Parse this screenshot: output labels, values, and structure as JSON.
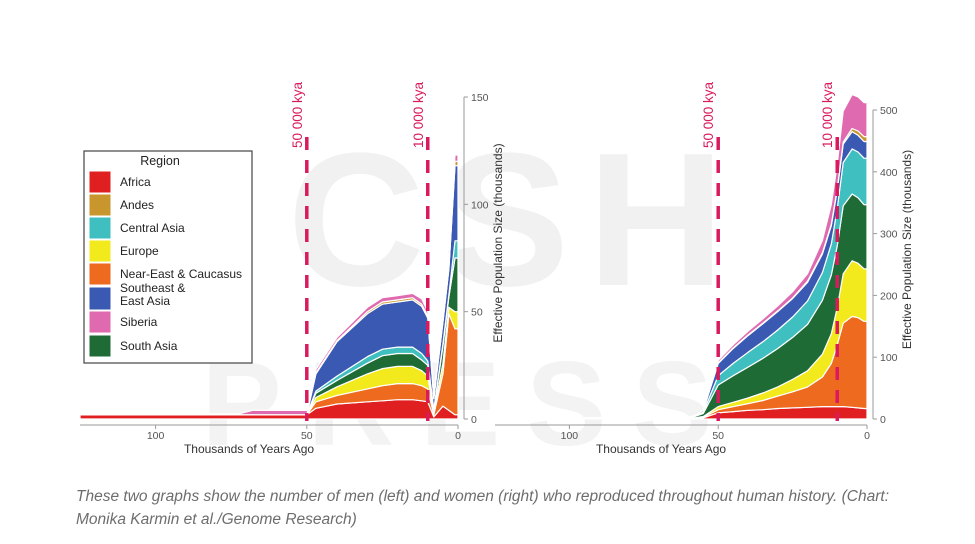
{
  "caption": "These two graphs show the number of men (left) and women (right) who reproduced throughout human history. (Chart: Monika Karmin et al./Genome Research)",
  "watermark": "CSH PRESS",
  "legend": {
    "title": "Region",
    "items": [
      {
        "label": "Africa",
        "color": "#e02020"
      },
      {
        "label": "Andes",
        "color": "#c9962e"
      },
      {
        "label": "Central Asia",
        "color": "#3fbfbf"
      },
      {
        "label": "Europe",
        "color": "#f2ea1c"
      },
      {
        "label": "Near-East & Caucasus",
        "color": "#ee6a1e"
      },
      {
        "label": "Southeast &\nEast Asia",
        "color": "#3a59b3"
      },
      {
        "label": "Siberia",
        "color": "#e06aaf"
      },
      {
        "label": "South Asia",
        "color": "#1f6b35"
      }
    ]
  },
  "chart_data": [
    {
      "type": "area",
      "subject": "men",
      "xlabel": "Thousands of Years Ago",
      "ylabel": "Effective Population Size (thousands)",
      "xlim": [
        125,
        0
      ],
      "ylim": [
        0,
        150
      ],
      "xticks": [
        100,
        50,
        0
      ],
      "yticks": [
        0,
        50,
        100,
        150
      ],
      "annotations": [
        {
          "x": 50,
          "label": "50 000 kya"
        },
        {
          "x": 10,
          "label": "10 000 kya"
        }
      ],
      "x": [
        125,
        72,
        68,
        60,
        52,
        50,
        47,
        40,
        30,
        25,
        20,
        15,
        12,
        10,
        8,
        5,
        3,
        1,
        0
      ],
      "series": [
        {
          "name": "Africa",
          "values": [
            2,
            2,
            2,
            2,
            2,
            2,
            5,
            7,
            8,
            8.5,
            9,
            9,
            8.5,
            8,
            1,
            6,
            4,
            2,
            2
          ]
        },
        {
          "name": "Near-East & Caucasus",
          "values": [
            0,
            0,
            0,
            0,
            0,
            0,
            3,
            4,
            6,
            7,
            7.5,
            7.5,
            7,
            6,
            1,
            15,
            45,
            40,
            40
          ]
        },
        {
          "name": "Europe",
          "values": [
            0,
            0,
            0,
            0,
            0,
            0,
            2,
            4,
            7,
            8,
            8,
            8,
            7,
            6,
            1,
            5,
            3,
            8,
            8
          ]
        },
        {
          "name": "South Asia",
          "values": [
            0,
            0,
            0,
            0,
            0,
            0,
            2,
            3,
            5,
            6,
            6,
            6,
            5,
            5,
            1,
            8,
            5,
            25,
            25
          ]
        },
        {
          "name": "Central Asia",
          "values": [
            0,
            0,
            0,
            0,
            0,
            0,
            1,
            2,
            3,
            3,
            3,
            3,
            3,
            2,
            0.5,
            1,
            1,
            8,
            8
          ]
        },
        {
          "name": "Southeast &\nEast Asia",
          "values": [
            0,
            0,
            0,
            0,
            0,
            0,
            8,
            16,
            20,
            21,
            21,
            22,
            22,
            20,
            5,
            10,
            12,
            35,
            35
          ]
        },
        {
          "name": "Andes",
          "values": [
            0,
            0,
            0,
            0,
            0,
            0,
            0.5,
            0.5,
            1,
            1,
            1,
            1,
            1,
            1,
            0.3,
            0.5,
            0.5,
            2,
            2
          ]
        },
        {
          "name": "Siberia",
          "values": [
            0,
            0.5,
            2,
            2,
            2,
            2,
            1.5,
            1.5,
            2,
            2,
            2,
            2,
            2.5,
            2,
            1,
            1,
            1,
            3,
            3
          ]
        }
      ]
    },
    {
      "type": "area",
      "subject": "women",
      "xlabel": "Thousands of Years Ago",
      "ylabel": "Effective Population Size (thousands)",
      "xlim": [
        125,
        0
      ],
      "ylim": [
        0,
        500
      ],
      "xticks": [
        100,
        50,
        0
      ],
      "yticks": [
        0,
        100,
        200,
        300,
        400,
        500
      ],
      "annotations": [
        {
          "x": 50,
          "label": "50 000 kya"
        },
        {
          "x": 10,
          "label": "10 000 kya"
        }
      ],
      "x": [
        125,
        62,
        58,
        55,
        50,
        45,
        40,
        35,
        30,
        25,
        20,
        15,
        12,
        10,
        8,
        5,
        3,
        1,
        0
      ],
      "series": [
        {
          "name": "Africa",
          "values": [
            2,
            2,
            2,
            2,
            10,
            12,
            14,
            15,
            17,
            18,
            19,
            20,
            20,
            20,
            20,
            19,
            18,
            17,
            17
          ]
        },
        {
          "name": "Near-East & Caucasus",
          "values": [
            0,
            0,
            0,
            1,
            5,
            8,
            11,
            15,
            20,
            26,
            33,
            48,
            70,
            100,
            135,
            147,
            146,
            141,
            141
          ]
        },
        {
          "name": "Europe",
          "values": [
            0,
            0,
            0,
            1,
            5,
            7,
            9,
            12,
            15,
            20,
            26,
            37,
            48,
            60,
            80,
            90,
            88,
            85,
            85
          ]
        },
        {
          "name": "South Asia",
          "values": [
            0,
            0,
            2,
            5,
            35,
            43,
            50,
            56,
            62,
            68,
            75,
            87,
            95,
            100,
            110,
            108,
            106,
            104,
            104
          ]
        },
        {
          "name": "Central Asia",
          "values": [
            0,
            0,
            0,
            2,
            15,
            20,
            24,
            27,
            30,
            33,
            38,
            45,
            50,
            60,
            70,
            73,
            74,
            75,
            75
          ]
        },
        {
          "name": "Southeast &\nEast Asia",
          "values": [
            0,
            0,
            1,
            3,
            20,
            24,
            27,
            29,
            30,
            30,
            30,
            30,
            30,
            30,
            30,
            28,
            27,
            27,
            27
          ]
        },
        {
          "name": "Andes",
          "values": [
            0,
            0,
            0,
            0,
            1,
            1,
            1,
            1,
            1,
            1,
            2,
            2,
            2,
            2,
            3,
            5,
            7,
            8,
            8
          ]
        },
        {
          "name": "Siberia",
          "values": [
            0,
            0,
            0,
            0,
            4,
            5,
            6,
            7,
            8,
            10,
            12,
            20,
            32,
            40,
            50,
            55,
            55,
            55,
            55
          ]
        }
      ]
    }
  ]
}
